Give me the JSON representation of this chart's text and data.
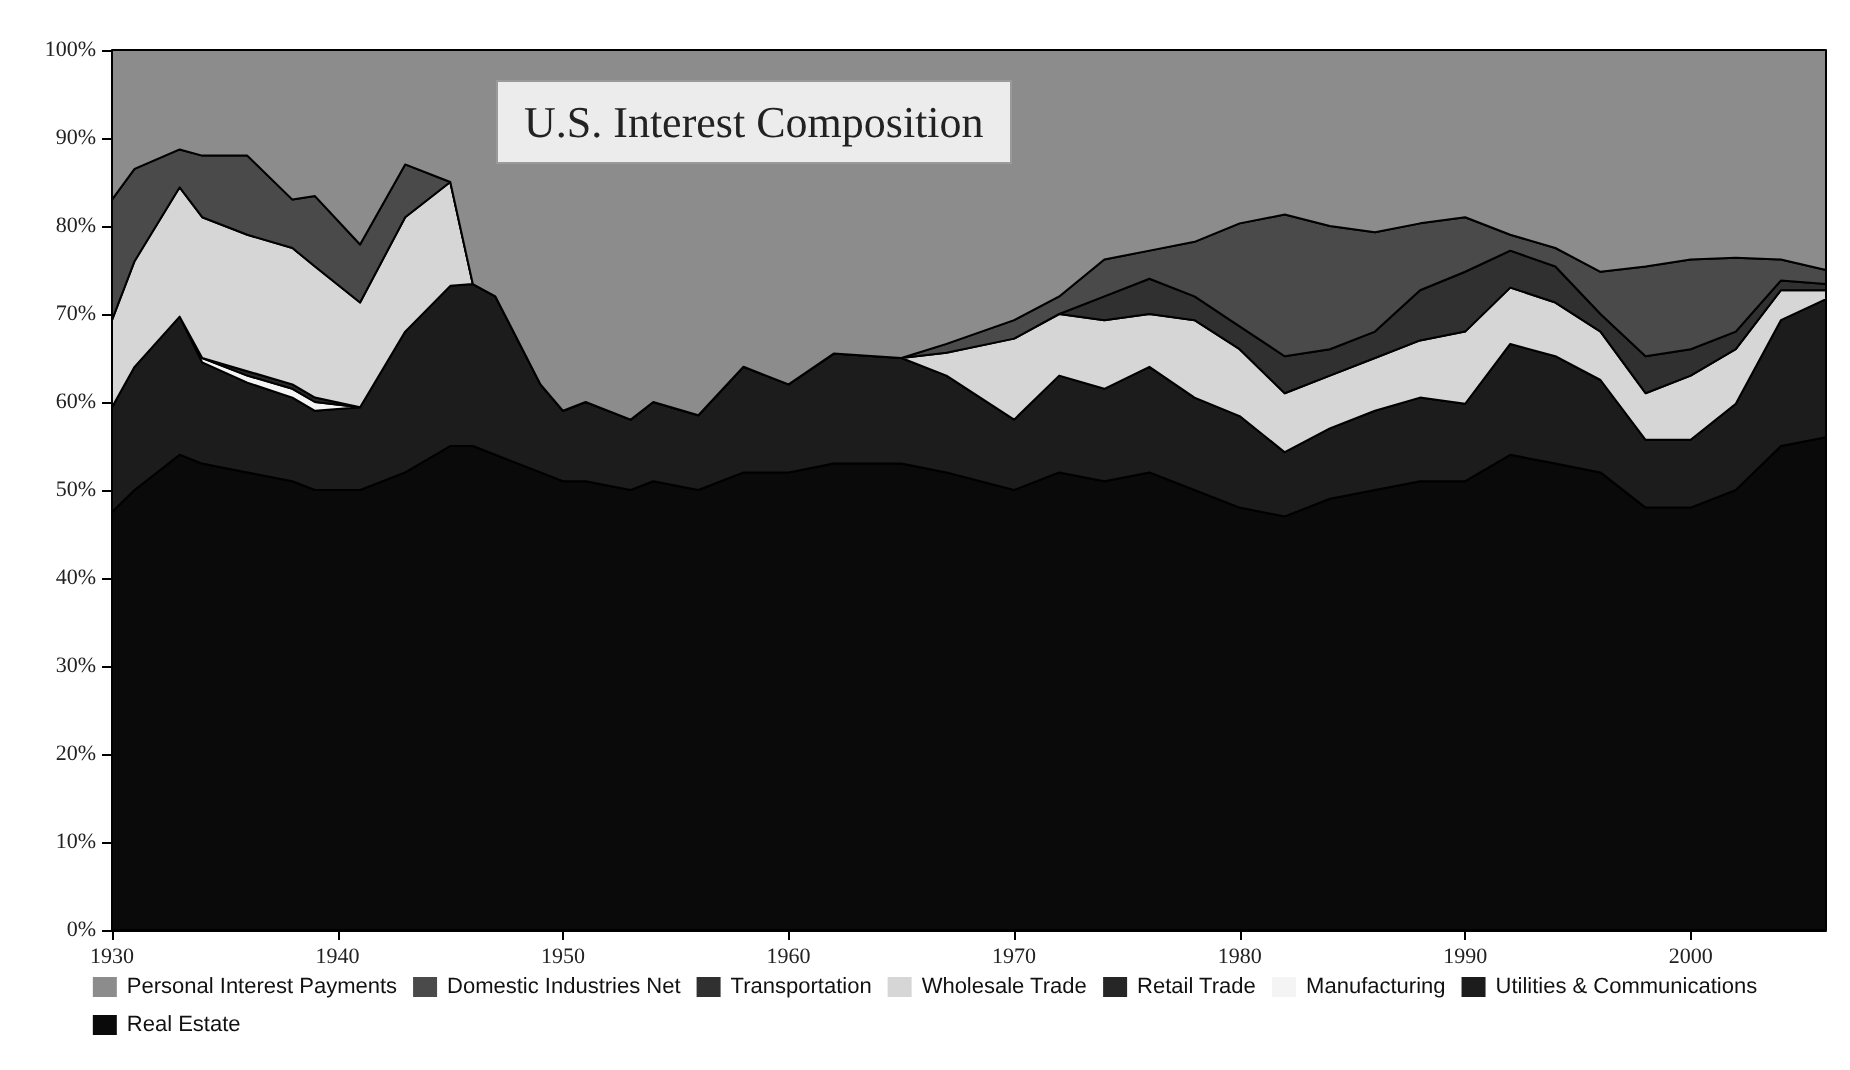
{
  "chart_data": {
    "type": "area",
    "title": "U.S. Interest Composition",
    "stacked": true,
    "legend": "bottom",
    "x": [
      1930,
      1931,
      1933,
      1934,
      1936,
      1938,
      1939,
      1941,
      1943,
      1945,
      1946,
      1947,
      1949,
      1950,
      1951,
      1953,
      1954,
      1956,
      1958,
      1960,
      1962,
      1965,
      1967,
      1970,
      1972,
      1974,
      1976,
      1978,
      1980,
      1982,
      1984,
      1986,
      1988,
      1990,
      1992,
      1994,
      1996,
      1998,
      2000,
      2002,
      2004,
      2006
    ],
    "xlim": [
      1930,
      2006
    ],
    "xticks": [
      1930,
      1940,
      1950,
      1960,
      1970,
      1980,
      1990,
      2000
    ],
    "ylim": [
      0,
      100
    ],
    "yticks": [
      {
        "value": 0,
        "label": "0%"
      },
      {
        "value": 10,
        "label": "10%"
      },
      {
        "value": 20,
        "label": "20%"
      },
      {
        "value": 30,
        "label": "30%"
      },
      {
        "value": 40,
        "label": "40%"
      },
      {
        "value": 50,
        "label": "50%"
      },
      {
        "value": 60,
        "label": "60%"
      },
      {
        "value": 70,
        "label": "70%"
      },
      {
        "value": 80,
        "label": "80%"
      },
      {
        "value": 90,
        "label": "90%"
      },
      {
        "value": 100,
        "label": "100%"
      }
    ],
    "series": [
      {
        "name": "Real Estate",
        "color": "#0a0a0a",
        "values": [
          47.5,
          50,
          54,
          53,
          52,
          51,
          50,
          50,
          52,
          55,
          55,
          54,
          52,
          51,
          51,
          50,
          51,
          50,
          52,
          52,
          53,
          53,
          52,
          50,
          52,
          51,
          52,
          50,
          48,
          47,
          49,
          50,
          51,
          51,
          54,
          53,
          52,
          48,
          48,
          50,
          55,
          56
        ]
      },
      {
        "name": "Utilities & Communications",
        "color": "#1c1c1c",
        "values": [
          11.9,
          14,
          15.7,
          11.5,
          10.2,
          9.5,
          9,
          9.4,
          16,
          18.2,
          18.4,
          18,
          10,
          8,
          9,
          8,
          9,
          8.5,
          12,
          10,
          12.5,
          12,
          11,
          8,
          11,
          10.5,
          12,
          10.5,
          10.4,
          7.3,
          8,
          9,
          9.5,
          8.8,
          12.6,
          12.2,
          10.5,
          7.7,
          7.7,
          9.8,
          14.3,
          15.7
        ]
      },
      {
        "name": "Manufacturing",
        "color": "#f4f4f4",
        "values": [
          null,
          null,
          0,
          0.5,
          0.8,
          1,
          1,
          0,
          null,
          null,
          null,
          null,
          null,
          null,
          null,
          null,
          null,
          null,
          null,
          null,
          null,
          null,
          null,
          null,
          null,
          null,
          null,
          null,
          null,
          null,
          null,
          null,
          null,
          null,
          null,
          null,
          null,
          null,
          null,
          null,
          null,
          null
        ]
      },
      {
        "name": "Retail Trade",
        "color": "#262626",
        "values": [
          null,
          null,
          null,
          0,
          0.5,
          0.5,
          0.5,
          0,
          null,
          null,
          null,
          null,
          null,
          null,
          null,
          null,
          null,
          null,
          null,
          null,
          null,
          null,
          null,
          null,
          null,
          null,
          null,
          null,
          null,
          null,
          null,
          null,
          null,
          null,
          null,
          null,
          null,
          null,
          null,
          null,
          null,
          null
        ]
      },
      {
        "name": "Wholesale Trade",
        "color": "#d6d6d6",
        "values": [
          9.9,
          12,
          14.7,
          16,
          15.5,
          15.5,
          14.9,
          11.9,
          13,
          11.8,
          0,
          0,
          0,
          0,
          0,
          0,
          0,
          0,
          0,
          0,
          0,
          0,
          2.6,
          9.2,
          7,
          7.8,
          6,
          8.8,
          7.6,
          6.7,
          6,
          6,
          6.5,
          8.2,
          6.4,
          6.1,
          5.5,
          5.3,
          7.3,
          6.2,
          3.4,
          1
        ]
      },
      {
        "name": "Transportation",
        "color": "#303030",
        "values": [
          null,
          null,
          null,
          null,
          null,
          null,
          null,
          null,
          null,
          null,
          null,
          null,
          null,
          null,
          null,
          null,
          null,
          null,
          null,
          null,
          null,
          null,
          null,
          null,
          0,
          2.7,
          4,
          2.7,
          2.6,
          4.2,
          3,
          3,
          5.7,
          6.8,
          4.2,
          4.1,
          2,
          4.2,
          3,
          2,
          1.1,
          0.7
        ]
      },
      {
        "name": "Domestic Industries Net",
        "color": "#4a4a4a",
        "values": [
          13.7,
          10.5,
          4.3,
          7,
          9,
          5.5,
          8,
          6.6,
          6,
          0,
          0,
          0,
          0,
          0,
          0,
          0,
          0,
          0,
          0,
          0,
          0,
          0,
          1,
          2.1,
          2,
          4.2,
          3.2,
          6.2,
          11.7,
          16.1,
          14,
          11.3,
          7.6,
          6.2,
          1.8,
          2.1,
          4.8,
          10.2,
          10.2,
          8.4,
          2.4,
          1.6
        ]
      },
      {
        "name": "Personal Interest Payments",
        "color": "#8c8c8c",
        "values": [
          17,
          13.5,
          11.3,
          12,
          12,
          17,
          16.6,
          22.1,
          13,
          15,
          26.6,
          28,
          38,
          41,
          40,
          42,
          40,
          41.5,
          36,
          38,
          34.5,
          35,
          33.4,
          30.7,
          28,
          23.8,
          22.8,
          21.8,
          19.7,
          18.7,
          20,
          20.7,
          19.7,
          19,
          21,
          22.5,
          25.2,
          24.6,
          23.8,
          23.6,
          23.8,
          25
        ]
      }
    ]
  }
}
